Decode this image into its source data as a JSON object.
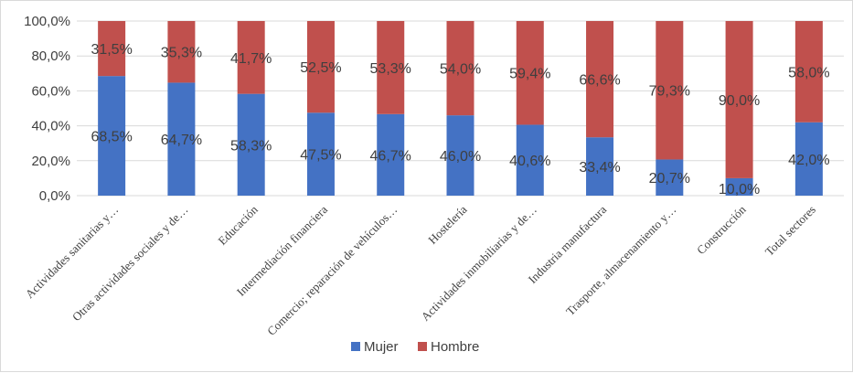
{
  "chart_data": {
    "type": "bar",
    "stacked": true,
    "categories": [
      "Actividades sanitarias y…",
      "Otras actividades sociales y de…",
      "Educación",
      "Intermediación financiera",
      "Comercio; reparación de vehículos…",
      "Hostelería",
      "Actividades inmobiliarias y de…",
      "Industria manufactura",
      "Trasporte, almacenamiento y…",
      "Construcción",
      "Total sectores"
    ],
    "series": [
      {
        "name": "Mujer",
        "color": "#4472c4",
        "values": [
          68.5,
          64.7,
          58.3,
          47.5,
          46.7,
          46.0,
          40.6,
          33.4,
          20.7,
          10.0,
          42.0
        ],
        "labels": [
          "68,5%",
          "64,7%",
          "58,3%",
          "47,5%",
          "46,7%",
          "46,0%",
          "40,6%",
          "33,4%",
          "20,7%",
          "10,0%",
          "42,0%"
        ]
      },
      {
        "name": "Hombre",
        "color": "#c0504d",
        "values": [
          31.5,
          35.3,
          41.7,
          52.5,
          53.3,
          54.0,
          59.4,
          66.6,
          79.3,
          90.0,
          58.0
        ],
        "labels": [
          "31,5%",
          "35,3%",
          "41,7%",
          "52,5%",
          "53,3%",
          "54,0%",
          "59,4%",
          "66,6%",
          "79,3%",
          "90,0%",
          "58,0%"
        ]
      }
    ],
    "ylim": [
      0,
      100
    ],
    "yticks": [
      0,
      20,
      40,
      60,
      80,
      100
    ],
    "ytick_labels": [
      "0,0%",
      "20,0%",
      "40,0%",
      "60,0%",
      "80,0%",
      "100,0%"
    ],
    "grid": true,
    "legend_position": "bottom"
  }
}
